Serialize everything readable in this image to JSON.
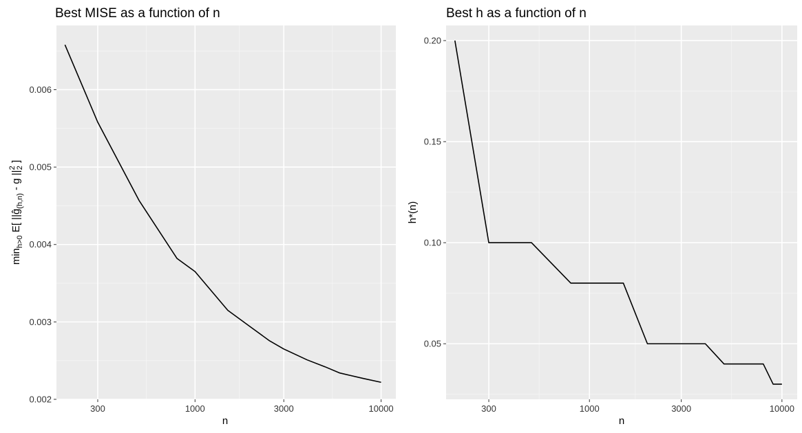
{
  "colors": {
    "panel_bg": "#EBEBEB",
    "grid_major": "#FFFFFF",
    "grid_minor": "#F5F5F5",
    "line": "#000000",
    "tick": "#333333"
  },
  "chart_data": [
    {
      "type": "line",
      "title": "Best MISE as a function of n",
      "xlabel": "n",
      "ylabel": {
        "prefix": "min",
        "prefix_sub": "h>0",
        "e_open": " E[ ||",
        "ghat": "ĝ",
        "ghat_sub": "(h,n)",
        "minus_g": " - g ||",
        "norm_sup": "2",
        "norm_sub": "2",
        "close": " ]"
      },
      "x_scale": "log10",
      "xlim": [
        180,
        12000
      ],
      "ylim": [
        0.002,
        0.00683
      ],
      "x_ticks": [
        300,
        1000,
        3000,
        10000
      ],
      "x_tick_labels": [
        "300",
        "1000",
        "3000",
        "10000"
      ],
      "y_ticks": [
        0.002,
        0.003,
        0.004,
        0.005,
        0.006
      ],
      "y_tick_labels": [
        "0.002",
        "0.003",
        "0.004",
        "0.005",
        "0.006"
      ],
      "grid": true,
      "x": [
        200,
        300,
        500,
        800,
        1000,
        1500,
        2000,
        2500,
        3000,
        4000,
        5000,
        6000,
        8000,
        10000
      ],
      "y": [
        0.00658,
        0.00558,
        0.00457,
        0.00382,
        0.00365,
        0.00315,
        0.00293,
        0.00276,
        0.00265,
        0.00251,
        0.00242,
        0.00234,
        0.00227,
        0.00222
      ]
    },
    {
      "type": "line",
      "title": "Best h as a function of n",
      "xlabel": "n",
      "ylabel": "h*(n)",
      "x_scale": "log10",
      "xlim": [
        180,
        12000
      ],
      "ylim": [
        0.0225,
        0.2075
      ],
      "x_ticks": [
        300,
        1000,
        3000,
        10000
      ],
      "x_tick_labels": [
        "300",
        "1000",
        "3000",
        "10000"
      ],
      "y_ticks": [
        0.05,
        0.1,
        0.15,
        0.2
      ],
      "y_tick_labels": [
        "0.05",
        "0.10",
        "0.15",
        "0.20"
      ],
      "grid": true,
      "x": [
        200,
        300,
        500,
        800,
        1500,
        2000,
        3000,
        4000,
        5000,
        8000,
        9000,
        10000
      ],
      "y": [
        0.2,
        0.1,
        0.1,
        0.08,
        0.08,
        0.05,
        0.05,
        0.05,
        0.04,
        0.04,
        0.03,
        0.03
      ]
    }
  ]
}
